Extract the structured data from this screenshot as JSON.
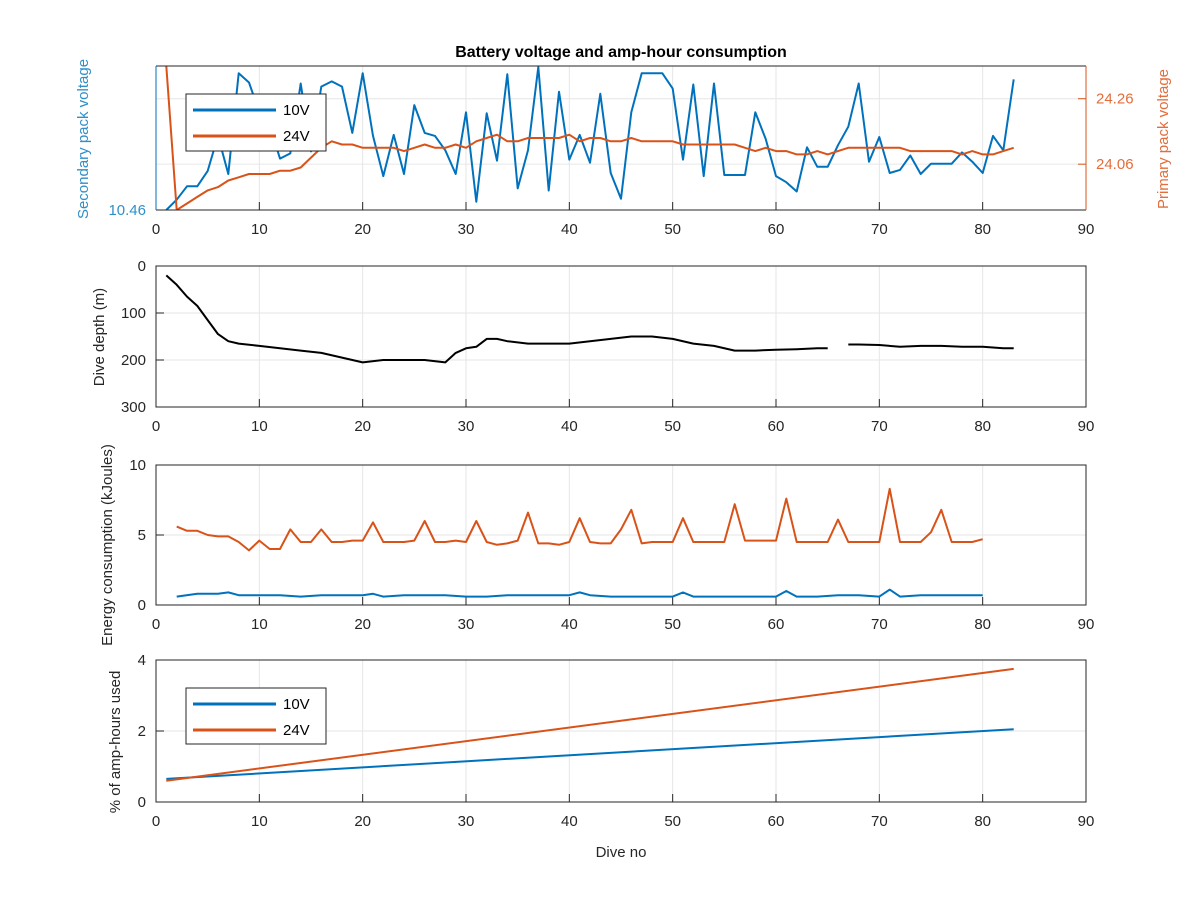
{
  "chart_data": [
    {
      "type": "line",
      "title": "Battery voltage and amp-hour consumption",
      "xlim": [
        0,
        90
      ],
      "xticks": [
        "0",
        "10",
        "20",
        "30",
        "40",
        "50",
        "60",
        "70",
        "80",
        "90"
      ],
      "ylabel_left": "Secondary pack voltage",
      "yticks_left": [
        "10.46"
      ],
      "ylim_left": [
        10.46,
        10.6
      ],
      "ylabel_right": "Primary pack voltage",
      "yticks_right": [
        "24.26",
        "24.06"
      ],
      "ylim_right": [
        23.92,
        24.36
      ],
      "legend": {
        "placement": "top-left"
      },
      "series": [
        {
          "name": "10V",
          "axis": "left",
          "color": "#0072BD",
          "x": [
            1,
            2,
            3,
            4,
            5,
            6,
            7,
            8,
            9,
            10,
            11,
            12,
            13,
            14,
            15,
            16,
            17,
            18,
            19,
            20,
            21,
            22,
            23,
            24,
            25,
            26,
            27,
            28,
            29,
            30,
            31,
            32,
            33,
            34,
            35,
            36,
            37,
            38,
            39,
            40,
            41,
            42,
            43,
            44,
            45,
            46,
            47,
            48,
            49,
            50,
            51,
            52,
            53,
            54,
            55,
            56,
            57,
            58,
            59,
            60,
            61,
            62,
            63,
            64,
            65,
            66,
            67,
            68,
            69,
            70,
            71,
            72,
            73,
            74,
            75,
            76,
            77,
            78,
            79,
            80,
            81,
            82,
            83
          ],
          "y": [
            10.46,
            10.47,
            10.483,
            10.483,
            10.498,
            10.532,
            10.495,
            10.593,
            10.584,
            10.555,
            10.542,
            10.51,
            10.515,
            10.583,
            10.517,
            10.58,
            10.585,
            10.58,
            10.535,
            10.593,
            10.532,
            10.493,
            10.533,
            10.495,
            10.562,
            10.535,
            10.532,
            10.518,
            10.495,
            10.555,
            10.468,
            10.554,
            10.508,
            10.592,
            10.481,
            10.518,
            10.599,
            10.479,
            10.575,
            10.509,
            10.533,
            10.506,
            10.573,
            10.496,
            10.471,
            10.555,
            10.593,
            10.593,
            10.593,
            10.578,
            10.509,
            10.582,
            10.493,
            10.583,
            10.494,
            10.494,
            10.494,
            10.555,
            10.529,
            10.493,
            10.487,
            10.478,
            10.521,
            10.502,
            10.502,
            10.523,
            10.541,
            10.583,
            10.507,
            10.531,
            10.496,
            10.499,
            10.513,
            10.495,
            10.505,
            10.505,
            10.505,
            10.516,
            10.507,
            10.496,
            10.532,
            10.518,
            10.587
          ]
        },
        {
          "name": "24V",
          "axis": "right",
          "color": "#D95319",
          "x": [
            1,
            2,
            3,
            4,
            5,
            6,
            7,
            8,
            9,
            10,
            11,
            12,
            13,
            14,
            15,
            16,
            17,
            18,
            19,
            20,
            21,
            22,
            23,
            24,
            25,
            26,
            27,
            28,
            29,
            30,
            31,
            32,
            33,
            34,
            35,
            36,
            37,
            38,
            39,
            40,
            41,
            42,
            43,
            44,
            45,
            46,
            47,
            48,
            49,
            50,
            51,
            52,
            53,
            54,
            55,
            56,
            57,
            58,
            59,
            60,
            61,
            62,
            63,
            64,
            65,
            66,
            67,
            68,
            69,
            70,
            71,
            72,
            73,
            74,
            75,
            76,
            77,
            78,
            79,
            80,
            81,
            82,
            83
          ],
          "y": [
            24.36,
            23.92,
            23.94,
            23.96,
            23.98,
            23.99,
            24.01,
            24.02,
            24.03,
            24.03,
            24.03,
            24.04,
            24.04,
            24.05,
            24.08,
            24.11,
            24.13,
            24.12,
            24.12,
            24.11,
            24.11,
            24.11,
            24.11,
            24.1,
            24.11,
            24.12,
            24.11,
            24.11,
            24.12,
            24.11,
            24.13,
            24.14,
            24.15,
            24.13,
            24.13,
            24.14,
            24.14,
            24.14,
            24.14,
            24.15,
            24.13,
            24.14,
            24.14,
            24.13,
            24.13,
            24.14,
            24.13,
            24.13,
            24.13,
            24.13,
            24.12,
            24.12,
            24.12,
            24.12,
            24.12,
            24.12,
            24.11,
            24.1,
            24.11,
            24.1,
            24.1,
            24.09,
            24.09,
            24.1,
            24.09,
            24.1,
            24.11,
            24.11,
            24.11,
            24.11,
            24.11,
            24.11,
            24.1,
            24.1,
            24.1,
            24.1,
            24.1,
            24.09,
            24.1,
            24.09,
            24.09,
            24.1,
            24.11
          ]
        }
      ]
    },
    {
      "type": "line",
      "title": "",
      "xlim": [
        0,
        90
      ],
      "xticks": [
        "0",
        "10",
        "20",
        "30",
        "40",
        "50",
        "60",
        "70",
        "80",
        "90"
      ],
      "ylabel": "Dive depth (m)",
      "ylim": [
        0,
        300
      ],
      "reversed_y": true,
      "yticks": [
        "0",
        "100",
        "200",
        "300"
      ],
      "series": [
        {
          "color": "#000000",
          "x": [
            1,
            2,
            3,
            4,
            5,
            6,
            7,
            8,
            10,
            12,
            14,
            16,
            18,
            20,
            22,
            24,
            26,
            28,
            29,
            30,
            31,
            32,
            33,
            34,
            36,
            38,
            40,
            42,
            44,
            46,
            48,
            50,
            52,
            54,
            56,
            58,
            60,
            62,
            64,
            65,
            null,
            67,
            68,
            70,
            72,
            74,
            76,
            78,
            80,
            82,
            83
          ],
          "y": [
            20,
            40,
            65,
            85,
            115,
            145,
            160,
            165,
            170,
            175,
            180,
            185,
            195,
            205,
            200,
            200,
            200,
            205,
            185,
            175,
            172,
            155,
            155,
            160,
            165,
            165,
            165,
            160,
            155,
            150,
            150,
            155,
            165,
            170,
            180,
            180,
            178,
            177,
            175,
            175,
            null,
            167,
            167,
            168,
            172,
            170,
            170,
            172,
            172,
            175,
            175
          ]
        }
      ]
    },
    {
      "type": "line",
      "title": "",
      "xlim": [
        0,
        90
      ],
      "xticks": [
        "0",
        "10",
        "20",
        "30",
        "40",
        "50",
        "60",
        "70",
        "80",
        "90"
      ],
      "ylabel": "Energy consumption (kJoules)",
      "ylim": [
        0,
        10
      ],
      "yticks": [
        "0",
        "5",
        "10"
      ],
      "series": [
        {
          "color": "#D95319",
          "x": [
            2,
            3,
            4,
            5,
            6,
            7,
            8,
            9,
            10,
            11,
            12,
            13,
            14,
            15,
            16,
            17,
            18,
            19,
            20,
            21,
            22,
            23,
            24,
            25,
            26,
            27,
            28,
            29,
            30,
            31,
            32,
            33,
            34,
            35,
            36,
            37,
            38,
            39,
            40,
            41,
            42,
            43,
            44,
            45,
            46,
            47,
            48,
            49,
            50,
            51,
            52,
            53,
            54,
            55,
            56,
            57,
            58,
            59,
            60,
            61,
            62,
            63,
            64,
            65,
            66,
            67,
            68,
            69,
            70,
            71,
            72,
            73,
            74,
            75,
            76,
            77,
            78,
            79,
            80
          ],
          "y": [
            5.6,
            5.3,
            5.3,
            5.0,
            4.9,
            4.9,
            4.5,
            3.9,
            4.6,
            4.0,
            4.0,
            5.4,
            4.5,
            4.5,
            5.4,
            4.5,
            4.5,
            4.6,
            4.6,
            5.9,
            4.5,
            4.5,
            4.5,
            4.6,
            6.0,
            4.5,
            4.5,
            4.6,
            4.5,
            6.0,
            4.5,
            4.3,
            4.4,
            4.6,
            6.6,
            4.4,
            4.4,
            4.3,
            4.5,
            6.2,
            4.5,
            4.4,
            4.4,
            5.4,
            6.8,
            4.4,
            4.5,
            4.5,
            4.5,
            6.2,
            4.5,
            4.5,
            4.5,
            4.5,
            7.2,
            4.6,
            4.6,
            4.6,
            4.6,
            7.6,
            4.5,
            4.5,
            4.5,
            4.5,
            6.1,
            4.5,
            4.5,
            4.5,
            4.5,
            8.3,
            4.5,
            4.5,
            4.5,
            5.2,
            6.8,
            4.5,
            4.5,
            4.5,
            4.7
          ]
        },
        {
          "color": "#0072BD",
          "x": [
            2,
            4,
            6,
            7,
            8,
            10,
            12,
            14,
            16,
            18,
            20,
            21,
            22,
            24,
            26,
            28,
            30,
            32,
            34,
            36,
            38,
            40,
            41,
            42,
            44,
            46,
            48,
            50,
            51,
            52,
            54,
            56,
            58,
            60,
            61,
            62,
            64,
            66,
            68,
            70,
            71,
            72,
            74,
            76,
            78,
            80
          ],
          "y": [
            0.6,
            0.8,
            0.8,
            0.9,
            0.7,
            0.7,
            0.7,
            0.6,
            0.7,
            0.7,
            0.7,
            0.8,
            0.6,
            0.7,
            0.7,
            0.7,
            0.6,
            0.6,
            0.7,
            0.7,
            0.7,
            0.7,
            0.9,
            0.7,
            0.6,
            0.6,
            0.6,
            0.6,
            0.9,
            0.6,
            0.6,
            0.6,
            0.6,
            0.6,
            1.0,
            0.6,
            0.6,
            0.7,
            0.7,
            0.6,
            1.1,
            0.6,
            0.7,
            0.7,
            0.7,
            0.7
          ]
        }
      ]
    },
    {
      "type": "line",
      "title": "",
      "xlim": [
        0,
        90
      ],
      "xticks": [
        "0",
        "10",
        "20",
        "30",
        "40",
        "50",
        "60",
        "70",
        "80",
        "90"
      ],
      "xlabel": "Dive no",
      "ylabel": "% of amp-hours used",
      "ylim": [
        0,
        4
      ],
      "yticks": [
        "0",
        "2",
        "4"
      ],
      "legend": {
        "placement": "left"
      },
      "series": [
        {
          "name": "10V",
          "color": "#0072BD",
          "x": [
            1,
            83
          ],
          "y": [
            0.65,
            2.05
          ]
        },
        {
          "name": "24V",
          "color": "#D95319",
          "x": [
            1,
            83
          ],
          "y": [
            0.6,
            3.75
          ]
        }
      ]
    }
  ],
  "colors": {
    "blue": "#0072BD",
    "orange": "#D95319",
    "black": "#000000",
    "axis": "#262626",
    "grid": "#e6e6e6"
  }
}
